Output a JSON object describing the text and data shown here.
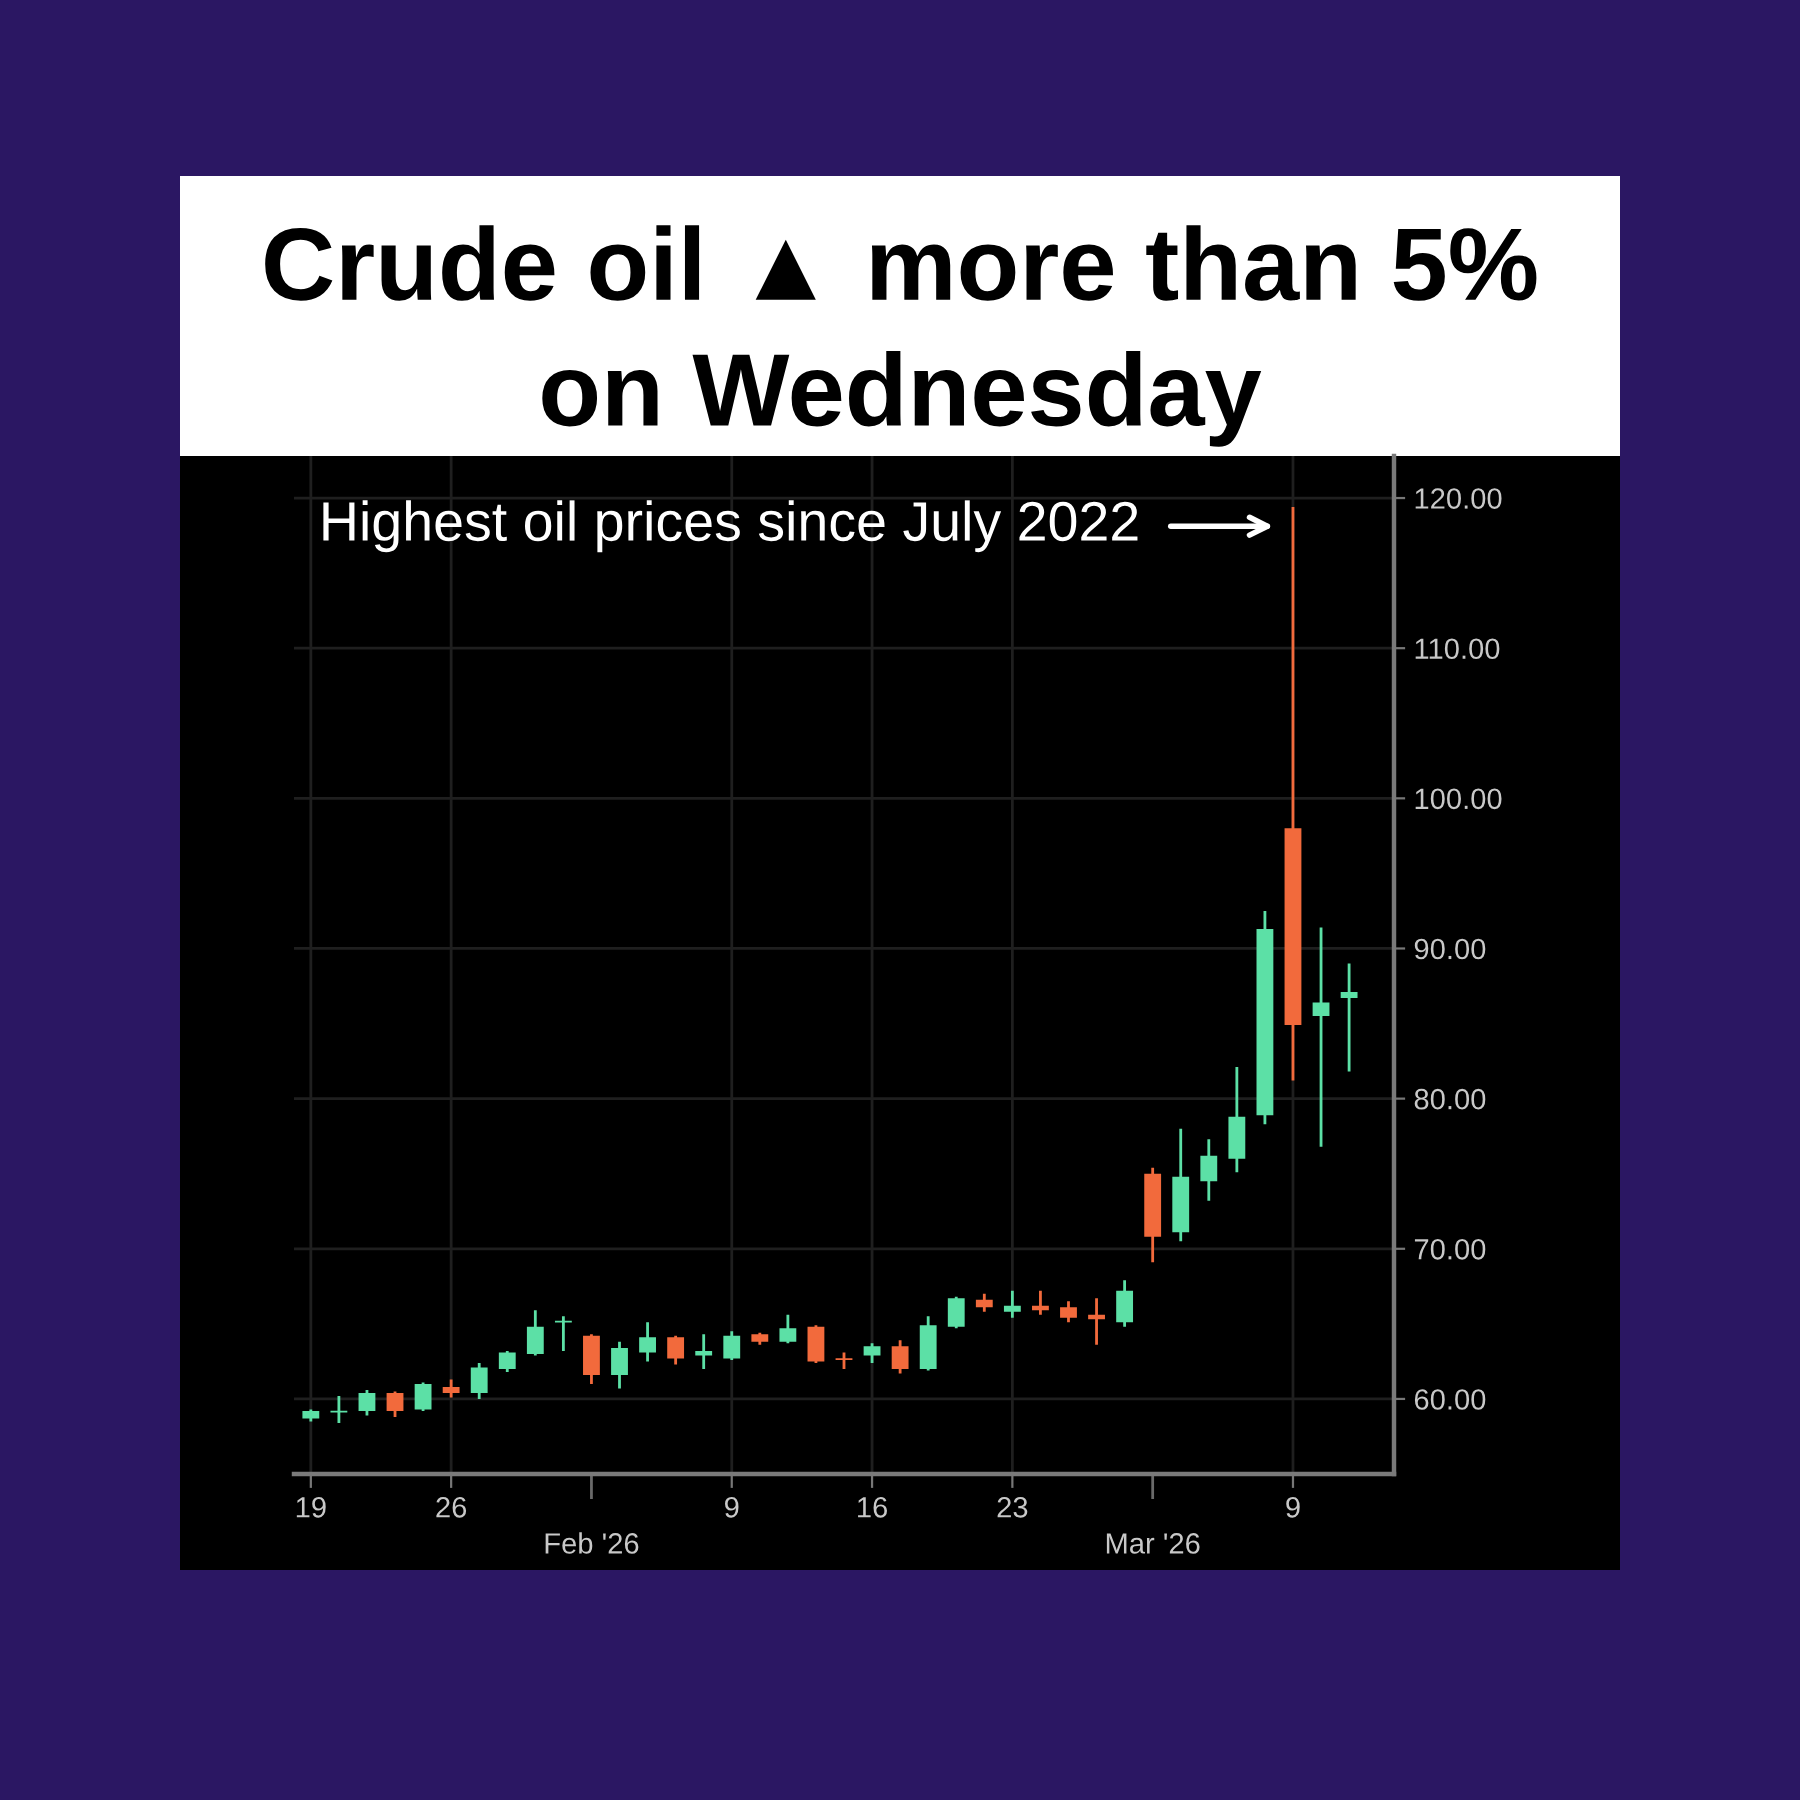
{
  "chart_data": {
    "type": "candlestick",
    "title": "Crude oil ▲ more than 5% on Wednesday",
    "categories": [
      "19",
      null,
      null,
      null,
      null,
      "26",
      null,
      null,
      null,
      null,
      "Feb '26",
      null,
      null,
      null,
      null,
      "9",
      null,
      null,
      null,
      null,
      "16",
      null,
      null,
      null,
      null,
      "23",
      null,
      null,
      null,
      null,
      "Mar '26",
      null,
      null,
      null,
      null,
      "9",
      null,
      null
    ],
    "ohlc": [
      [
        58.7,
        59.3,
        58.5,
        59.2
      ],
      [
        59.1,
        60.2,
        58.4,
        59.2
      ],
      [
        59.2,
        60.6,
        58.9,
        60.4
      ],
      [
        60.4,
        60.5,
        58.8,
        59.2
      ],
      [
        59.3,
        61.1,
        59.2,
        61.0
      ],
      [
        60.8,
        61.3,
        60.1,
        60.4
      ],
      [
        60.4,
        62.4,
        60.0,
        62.1
      ],
      [
        62.0,
        63.2,
        61.8,
        63.1
      ],
      [
        63.0,
        65.9,
        62.9,
        64.8
      ],
      [
        65.1,
        65.5,
        63.2,
        65.2
      ],
      [
        64.2,
        64.3,
        61.0,
        61.6
      ],
      [
        61.6,
        63.8,
        60.7,
        63.4
      ],
      [
        63.1,
        65.1,
        62.5,
        64.1
      ],
      [
        64.1,
        64.2,
        62.3,
        62.7
      ],
      [
        62.9,
        64.3,
        62.0,
        63.2
      ],
      [
        62.7,
        64.5,
        62.6,
        64.2
      ],
      [
        64.3,
        64.4,
        63.6,
        63.8
      ],
      [
        63.8,
        65.6,
        63.7,
        64.7
      ],
      [
        64.8,
        64.9,
        62.4,
        62.5
      ],
      [
        62.7,
        63.1,
        62.0,
        62.6
      ],
      [
        62.9,
        63.7,
        62.4,
        63.5
      ],
      [
        63.5,
        63.9,
        61.7,
        62.0
      ],
      [
        62.0,
        65.5,
        61.9,
        64.9
      ],
      [
        64.8,
        66.8,
        64.7,
        66.7
      ],
      [
        66.6,
        67.0,
        65.8,
        66.1
      ],
      [
        65.8,
        67.2,
        65.4,
        66.2
      ],
      [
        66.2,
        67.2,
        65.6,
        65.9
      ],
      [
        66.1,
        66.5,
        65.1,
        65.4
      ],
      [
        65.6,
        66.7,
        63.6,
        65.3
      ],
      [
        65.1,
        67.9,
        64.8,
        67.2
      ],
      [
        75.0,
        75.4,
        69.1,
        70.8
      ],
      [
        71.1,
        78.0,
        70.5,
        74.8
      ],
      [
        74.5,
        77.3,
        73.2,
        76.2
      ],
      [
        76.0,
        82.1,
        75.1,
        78.8
      ],
      [
        78.9,
        92.5,
        78.3,
        91.3
      ],
      [
        98.0,
        119.4,
        81.2,
        84.9
      ],
      [
        85.5,
        91.4,
        76.8,
        86.4
      ],
      [
        86.7,
        89.0,
        81.8,
        87.1
      ]
    ],
    "colors": [
      "#5ce0a6",
      "#5ce0a6",
      "#5ce0a6",
      "#f26a3c",
      "#5ce0a6",
      "#f26a3c",
      "#5ce0a6",
      "#5ce0a6",
      "#5ce0a6",
      "#5ce0a6",
      "#f26a3c",
      "#5ce0a6",
      "#5ce0a6",
      "#f26a3c",
      "#5ce0a6",
      "#5ce0a6",
      "#f26a3c",
      "#5ce0a6",
      "#f26a3c",
      "#f26a3c",
      "#5ce0a6",
      "#f26a3c",
      "#5ce0a6",
      "#5ce0a6",
      "#f26a3c",
      "#5ce0a6",
      "#f26a3c",
      "#f26a3c",
      "#f26a3c",
      "#5ce0a6",
      "#f26a3c",
      "#5ce0a6",
      "#5ce0a6",
      "#5ce0a6",
      "#5ce0a6",
      "#f26a3c",
      "#5ce0a6",
      "#5ce0a6"
    ],
    "ylim": [
      55,
      122.8
    ],
    "yticks": [
      {
        "value": 60,
        "label": "60.00"
      },
      {
        "value": 70,
        "label": "70.00"
      },
      {
        "value": 80,
        "label": "80.00"
      },
      {
        "value": 90,
        "label": "90.00"
      },
      {
        "value": 100,
        "label": "100.00"
      },
      {
        "value": 110,
        "label": "110.00"
      },
      {
        "value": 120,
        "label": "120.00"
      }
    ],
    "grid": true,
    "annotations": [
      "Highest oil prices since July 2022"
    ]
  }
}
